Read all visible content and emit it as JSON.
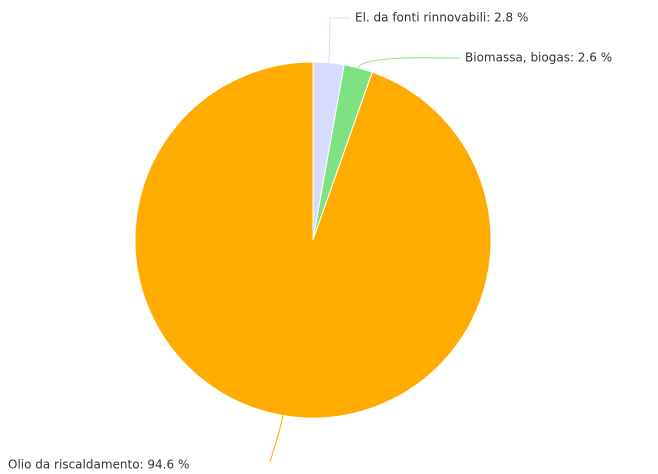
{
  "chart_data": {
    "type": "pie",
    "values": [
      2.8,
      2.6,
      94.6
    ],
    "value_labels": [
      "El. da fonti rinnovabili: 2.8 %",
      "Biomassa, biogas: 2.6 %",
      "Olio da riscaldamento: 94.6 %"
    ],
    "colors": [
      "#d5dcfc",
      "#7ee283",
      "#ffab00"
    ]
  }
}
